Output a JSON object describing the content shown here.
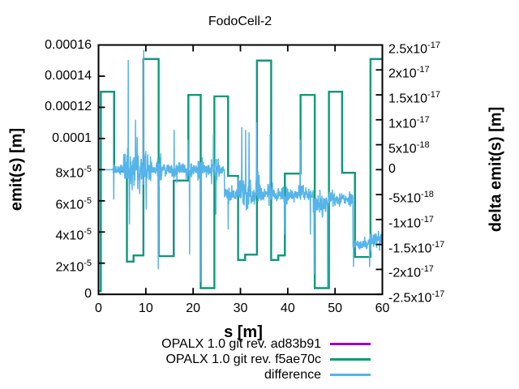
{
  "title": "FodoCell-2",
  "axes": {
    "x": {
      "label": "s [m]",
      "ticks": [
        "0",
        "10",
        "20",
        "30",
        "40",
        "50",
        "60"
      ]
    },
    "y_left": {
      "label": "emit(s) [m]",
      "ticks": [
        "0.00016",
        "0.00014",
        "0.00012",
        "0.0001",
        "8x10^-5",
        "6x10^-5",
        "4x10^-5",
        "2x10^-5",
        "0"
      ]
    },
    "y_right": {
      "label": "delta emit(s) [m]",
      "ticks": [
        "2.5x10^-17",
        "2x10^-17",
        "1.5x10^-17",
        "1x10^-17",
        "5x10^-18",
        "0",
        "-5x10^-18",
        "-1x10^-17",
        "-1.5x10^-17",
        "-2x10^-17",
        "-2.5x10^-17"
      ]
    }
  },
  "legend": [
    {
      "label": "OPALX 1.0 git rev. ad83b91",
      "color": "#9400d3"
    },
    {
      "label": "OPALX 1.0 git rev. f5ae70c",
      "color": "#009e73"
    },
    {
      "label": "difference",
      "color": "#56b4e9"
    }
  ],
  "chart_data": {
    "type": "line",
    "title": "FodoCell-2",
    "xlabel": "s [m]",
    "ylabel_left": "emit(s) [m]",
    "ylabel_right": "delta emit(s) [m]",
    "x_range": [
      0,
      60
    ],
    "y_left_range": [
      0,
      0.00016
    ],
    "y_right_range": [
      -2.5e-17,
      2.5e-17
    ],
    "grid": false,
    "legend_position": "below",
    "series": [
      {
        "name": "OPALX 1.0 git rev. ad83b91",
        "color": "#9400d3",
        "axis": "left",
        "style": "steps",
        "points": [
          [
            0,
            2e-06
          ],
          [
            0.5,
            0.00013
          ],
          [
            3.3,
            7.9e-05
          ],
          [
            6.0,
            2.1e-05
          ],
          [
            7.4,
            2.5e-05
          ],
          [
            9.5,
            0.000151
          ],
          [
            12.7,
            2.45e-05
          ],
          [
            15.9,
            7.3e-05
          ],
          [
            19.0,
            0.000128
          ],
          [
            21.6,
            4e-06
          ],
          [
            24.5,
            0.000127
          ],
          [
            27.4,
            7.6e-05
          ],
          [
            29.5,
            2.2e-05
          ],
          [
            31.0,
            2.55e-05
          ],
          [
            33.5,
            0.00015
          ],
          [
            36.5,
            2.2e-05
          ],
          [
            38.0,
            2.5e-05
          ],
          [
            39.4,
            7.75e-05
          ],
          [
            42.7,
            0.000128
          ],
          [
            45.7,
            4e-06
          ],
          [
            48.7,
            0.00013
          ],
          [
            51.5,
            7.8e-05
          ],
          [
            54.2,
            2.4e-05
          ],
          [
            57.5,
            0.000151
          ],
          [
            60,
            0.000151
          ]
        ]
      },
      {
        "name": "OPALX 1.0 git rev. f5ae70c",
        "color": "#009e73",
        "axis": "left",
        "style": "steps",
        "points": [
          [
            0,
            2e-06
          ],
          [
            0.5,
            0.00013
          ],
          [
            3.3,
            7.9e-05
          ],
          [
            6.0,
            2.1e-05
          ],
          [
            7.4,
            2.5e-05
          ],
          [
            9.5,
            0.000151
          ],
          [
            12.7,
            2.45e-05
          ],
          [
            15.9,
            7.3e-05
          ],
          [
            19.0,
            0.000128
          ],
          [
            21.6,
            4e-06
          ],
          [
            24.5,
            0.000127
          ],
          [
            27.4,
            7.6e-05
          ],
          [
            29.5,
            2.2e-05
          ],
          [
            31.0,
            2.55e-05
          ],
          [
            33.5,
            0.00015
          ],
          [
            36.5,
            2.2e-05
          ],
          [
            38.0,
            2.5e-05
          ],
          [
            39.4,
            7.75e-05
          ],
          [
            42.7,
            0.000128
          ],
          [
            45.7,
            4e-06
          ],
          [
            48.7,
            0.00013
          ],
          [
            51.5,
            7.8e-05
          ],
          [
            54.2,
            2.4e-05
          ],
          [
            57.5,
            0.000151
          ],
          [
            60,
            0.000151
          ]
        ]
      },
      {
        "name": "difference",
        "color": "#56b4e9",
        "axis": "right",
        "style": "noise",
        "noise_segments": [
          [
            0,
            3.0,
            0,
            0
          ],
          [
            3.0,
            5.3,
            0,
            2e-18
          ],
          [
            5.3,
            9.2,
            0,
            7e-18
          ],
          [
            9.2,
            11.3,
            0,
            6e-18
          ],
          [
            11.3,
            12.2,
            0,
            2e-18
          ],
          [
            12.2,
            13.3,
            0,
            4.5e-18
          ],
          [
            13.3,
            15.5,
            0,
            2e-18
          ],
          [
            15.5,
            16.6,
            0,
            3.5e-18
          ],
          [
            16.6,
            18.4,
            0,
            2e-18
          ],
          [
            18.4,
            19.6,
            0,
            4e-18
          ],
          [
            19.6,
            21.0,
            0,
            2e-18
          ],
          [
            21.0,
            22.2,
            0,
            4e-18
          ],
          [
            22.2,
            23.8,
            0,
            2e-18
          ],
          [
            23.8,
            25.6,
            0,
            3.5e-18
          ],
          [
            25.6,
            26.6,
            0,
            2e-18
          ],
          [
            26.6,
            29.5,
            -5e-18,
            2.5e-18
          ],
          [
            29.5,
            32.2,
            -4e-18,
            6.5e-18
          ],
          [
            32.2,
            33.2,
            -5e-18,
            3e-18
          ],
          [
            33.2,
            34.2,
            -4e-18,
            5e-18
          ],
          [
            34.2,
            35.8,
            -5e-18,
            2e-18
          ],
          [
            35.8,
            36.8,
            -4.5e-18,
            4.5e-18
          ],
          [
            36.8,
            38.8,
            -5e-18,
            2e-18
          ],
          [
            38.8,
            40.0,
            -5e-18,
            4e-18
          ],
          [
            40.0,
            42.3,
            -5e-18,
            2e-18
          ],
          [
            42.3,
            43.3,
            -4e-18,
            4e-18
          ],
          [
            43.3,
            45.4,
            -5e-18,
            2.2e-18
          ],
          [
            45.4,
            48.6,
            -7e-18,
            4e-18
          ],
          [
            48.6,
            50.0,
            -6e-18,
            3e-18
          ],
          [
            50.0,
            53.8,
            -6e-18,
            2.5e-18
          ],
          [
            53.8,
            57.4,
            -1.5e-17,
            2e-18
          ],
          [
            57.4,
            60,
            -1.4e-17,
            3.5e-18
          ]
        ],
        "spikes": [
          [
            3.2,
            -6e-18
          ],
          [
            6.3,
            2.2e-17
          ],
          [
            6.55,
            -1.1e-17
          ],
          [
            7.8,
            1e-17
          ],
          [
            9.55,
            2.4e-17
          ],
          [
            10.1,
            -8e-18
          ],
          [
            12.6,
            -2e-17
          ],
          [
            16.0,
            8e-18
          ],
          [
            18.9,
            6e-18
          ],
          [
            19.25,
            -1.7e-17
          ],
          [
            21.5,
            -2.25e-17
          ],
          [
            24.3,
            7e-18
          ],
          [
            24.8,
            -9e-18
          ],
          [
            27.4,
            -1.2e-17
          ],
          [
            30.3,
            8.5e-18
          ],
          [
            31.1,
            8e-18
          ],
          [
            31.8,
            7.5e-18
          ],
          [
            33.4,
            9.5e-18
          ],
          [
            36.3,
            7e-18
          ],
          [
            39.3,
            -1.3e-17
          ],
          [
            42.6,
            6e-18
          ],
          [
            44.8,
            -1.3e-17
          ],
          [
            45.6,
            -2.1e-17
          ],
          [
            48.45,
            -2.35e-17
          ],
          [
            53.9,
            -1.95e-17
          ],
          [
            57.3,
            -1.95e-17
          ]
        ]
      }
    ]
  }
}
